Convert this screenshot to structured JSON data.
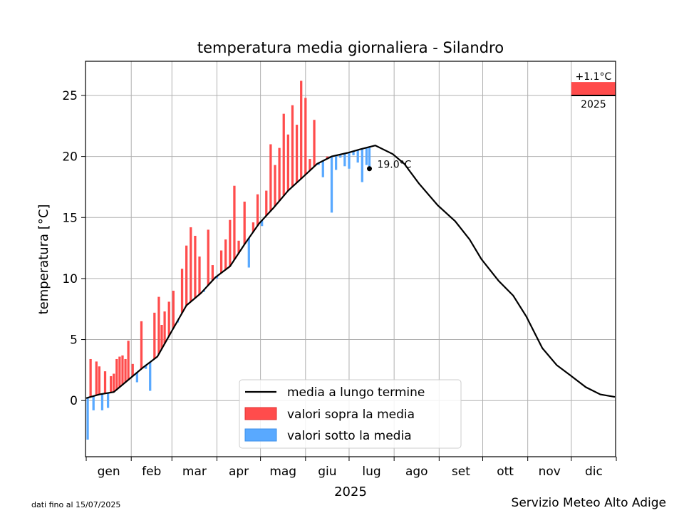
{
  "chart_data": {
    "type": "bar",
    "title": "temperatura media giornaliera - Silandro",
    "xlabel": "2025",
    "ylabel": "temperatura [°C]",
    "ylim": [
      -4.6,
      27.8
    ],
    "yticks": [
      0,
      5,
      10,
      15,
      20,
      25
    ],
    "month_labels": [
      "gen",
      "feb",
      "mar",
      "apr",
      "mag",
      "giu",
      "lug",
      "ago",
      "set",
      "ott",
      "nov",
      "dic"
    ],
    "grid": true,
    "legend_position": "lower-center",
    "last_value_label": "19.0°C",
    "last_value": 19.0,
    "last_day_of_year": 196,
    "anomaly_label": "+1.1°C",
    "anomaly_value": 1.1,
    "anomaly_year_label": "2025",
    "climatology": {
      "name": "media a lungo termine",
      "color": "#000000",
      "day_of_year": [
        1,
        10,
        20,
        31,
        40,
        50,
        59,
        70,
        80,
        90,
        100,
        110,
        120,
        130,
        140,
        151,
        160,
        170,
        181,
        190,
        200,
        212,
        220,
        230,
        243,
        255,
        265,
        273,
        285,
        295,
        304,
        315,
        325,
        334,
        345,
        355,
        365
      ],
      "values": [
        0.2,
        0.5,
        0.7,
        1.8,
        2.7,
        3.6,
        5.5,
        7.8,
        8.8,
        10.1,
        11.0,
        12.8,
        14.5,
        15.8,
        17.2,
        18.4,
        19.4,
        20.0,
        20.3,
        20.6,
        20.9,
        20.2,
        19.4,
        17.8,
        16.0,
        14.7,
        13.2,
        11.6,
        9.8,
        8.6,
        6.9,
        4.3,
        2.9,
        2.1,
        1.1,
        0.5,
        0.3
      ]
    },
    "series": [
      {
        "name": "valori sopra la media",
        "color": "#ff4c4c"
      },
      {
        "name": "valori sotto la media",
        "color": "#59a9ff"
      }
    ],
    "daily": {
      "day_of_year": [
        2,
        4,
        6,
        8,
        10,
        12,
        14,
        16,
        18,
        20,
        22,
        24,
        26,
        28,
        30,
        33,
        36,
        39,
        42,
        45,
        48,
        51,
        53,
        55,
        58,
        61,
        64,
        67,
        70,
        73,
        76,
        79,
        82,
        85,
        88,
        91,
        94,
        97,
        100,
        103,
        106,
        110,
        113,
        116,
        119,
        122,
        125,
        128,
        131,
        134,
        137,
        140,
        143,
        146,
        149,
        152,
        155,
        158,
        161,
        164,
        167,
        170,
        173,
        176,
        179,
        182,
        185,
        188,
        191,
        194,
        196
      ],
      "values": [
        -3.2,
        3.4,
        -0.8,
        3.2,
        2.8,
        -0.8,
        2.4,
        -0.6,
        2.0,
        2.2,
        3.4,
        3.6,
        3.7,
        3.4,
        4.9,
        3.0,
        1.5,
        6.5,
        2.6,
        0.8,
        7.2,
        8.5,
        6.2,
        7.3,
        8.1,
        9.0,
        6.4,
        10.8,
        12.7,
        14.2,
        13.5,
        11.8,
        8.9,
        14.0,
        11.1,
        10.0,
        12.3,
        13.2,
        14.8,
        17.6,
        13.1,
        16.3,
        10.9,
        14.6,
        16.9,
        14.3,
        17.2,
        21.0,
        19.3,
        20.7,
        23.5,
        21.8,
        24.2,
        22.6,
        26.2,
        24.8,
        19.8,
        23.0,
        19.3,
        18.3,
        20.0,
        15.4,
        18.9,
        19.9,
        19.2,
        19.0,
        20.1,
        19.5,
        17.9,
        19.3,
        19.0
      ]
    }
  },
  "footer": {
    "date_note": "dati fino al 15/07/2025",
    "source": "Servizio Meteo Alto Adige"
  }
}
